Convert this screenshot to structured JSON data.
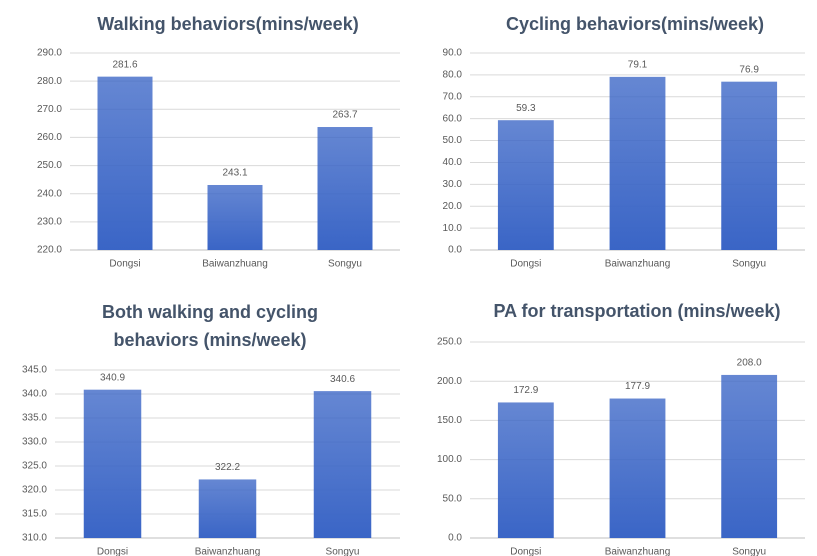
{
  "chart_data": [
    {
      "type": "bar",
      "title": "Walking behaviors(mins/week)",
      "categories": [
        "Dongsi",
        "Baiwanzhuang",
        "Songyu"
      ],
      "values": [
        281.6,
        243.1,
        263.7
      ],
      "color": "#3a65c6",
      "ylim": [
        220,
        290
      ],
      "yticks": [
        {
          "value": 220,
          "label": "220.0"
        },
        {
          "value": 230,
          "label": "230.0"
        },
        {
          "value": 240,
          "label": "240.0"
        },
        {
          "value": 250,
          "label": "250.0"
        },
        {
          "value": 260,
          "label": "260.0"
        },
        {
          "value": 270,
          "label": "270.0"
        },
        {
          "value": 280,
          "label": "280.0"
        },
        {
          "value": 290,
          "label": "290.0"
        }
      ],
      "grid": true
    },
    {
      "type": "bar",
      "title": "Cycling behaviors(mins/week)",
      "categories": [
        "Dongsi",
        "Baiwanzhuang",
        "Songyu"
      ],
      "values": [
        59.3,
        79.1,
        76.9
      ],
      "color": "#3a65c6",
      "ylim": [
        0,
        90
      ],
      "yticks": [
        {
          "value": 0,
          "label": "0.0"
        },
        {
          "value": 10,
          "label": "10.0"
        },
        {
          "value": 20,
          "label": "20.0"
        },
        {
          "value": 30,
          "label": "30.0"
        },
        {
          "value": 40,
          "label": "40.0"
        },
        {
          "value": 50,
          "label": "50.0"
        },
        {
          "value": 60,
          "label": "60.0"
        },
        {
          "value": 70,
          "label": "70.0"
        },
        {
          "value": 80,
          "label": "80.0"
        },
        {
          "value": 90,
          "label": "90.0"
        }
      ],
      "grid": true
    },
    {
      "type": "bar",
      "title": [
        "Both walking and cycling",
        "behaviors (mins/week)"
      ],
      "categories": [
        "Dongsi",
        "Baiwanzhuang",
        "Songyu"
      ],
      "values": [
        340.9,
        322.2,
        340.6
      ],
      "color": "#3a65c6",
      "ylim": [
        310,
        345
      ],
      "yticks": [
        {
          "value": 310,
          "label": "310.0"
        },
        {
          "value": 315,
          "label": "315.0"
        },
        {
          "value": 320,
          "label": "320.0"
        },
        {
          "value": 325,
          "label": "325.0"
        },
        {
          "value": 330,
          "label": "330.0"
        },
        {
          "value": 335,
          "label": "335.0"
        },
        {
          "value": 340,
          "label": "340.0"
        },
        {
          "value": 345,
          "label": "345.0"
        }
      ],
      "grid": true
    },
    {
      "type": "bar",
      "title": "PA for transportation (mins/week)",
      "categories": [
        "Dongsi",
        "Baiwanzhuang",
        "Songyu"
      ],
      "values": [
        172.9,
        177.9,
        208
      ],
      "value_labels": [
        "172.9",
        "177.9",
        "208.0"
      ],
      "color": "#3a65c6",
      "ylim": [
        0,
        250
      ],
      "yticks": [
        {
          "value": 0,
          "label": "0.0"
        },
        {
          "value": 50,
          "label": "50.0"
        },
        {
          "value": 100,
          "label": "100.0"
        },
        {
          "value": 150,
          "label": "150.0"
        },
        {
          "value": 200,
          "label": "200.0"
        },
        {
          "value": 250,
          "label": "250.0"
        }
      ],
      "grid": true
    }
  ]
}
